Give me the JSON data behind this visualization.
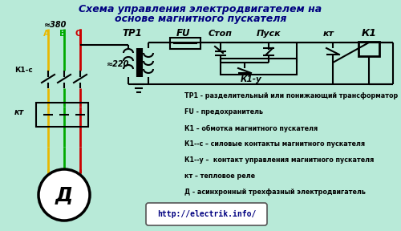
{
  "title_line1": "Схема управления электродвигателем на",
  "title_line2": "основе магнитного пускателя",
  "bg_color": "#b8ead8",
  "wire_color": "#000000",
  "color_A": "#e8b800",
  "color_B": "#00aa00",
  "color_C": "#cc0000",
  "legend_lines": [
    "ТР1 - разделительный или понижающий трансформатор",
    "FU - предохранитель",
    "К1 – обмотка магнитного пускателя",
    "К1--с – силовые контакты магнитного пускателя",
    "К1--у –  контакт управления магнитного пускателя",
    "кт – тепловое реле",
    "Д - асинхронный трехфазный электродвигатель"
  ],
  "url": "http://electrik.info/",
  "labels": {
    "approx380": "≈380",
    "approx220": "≈220",
    "A": "A",
    "B": "B",
    "C": "C",
    "TP1": "ТР1",
    "FU": "FU",
    "Stop": "Стоп",
    "Start": "Пуск",
    "K1": "К1",
    "K1y": "К1-у",
    "K1c": "К1-с",
    "kt": "кт",
    "D": "Д"
  }
}
